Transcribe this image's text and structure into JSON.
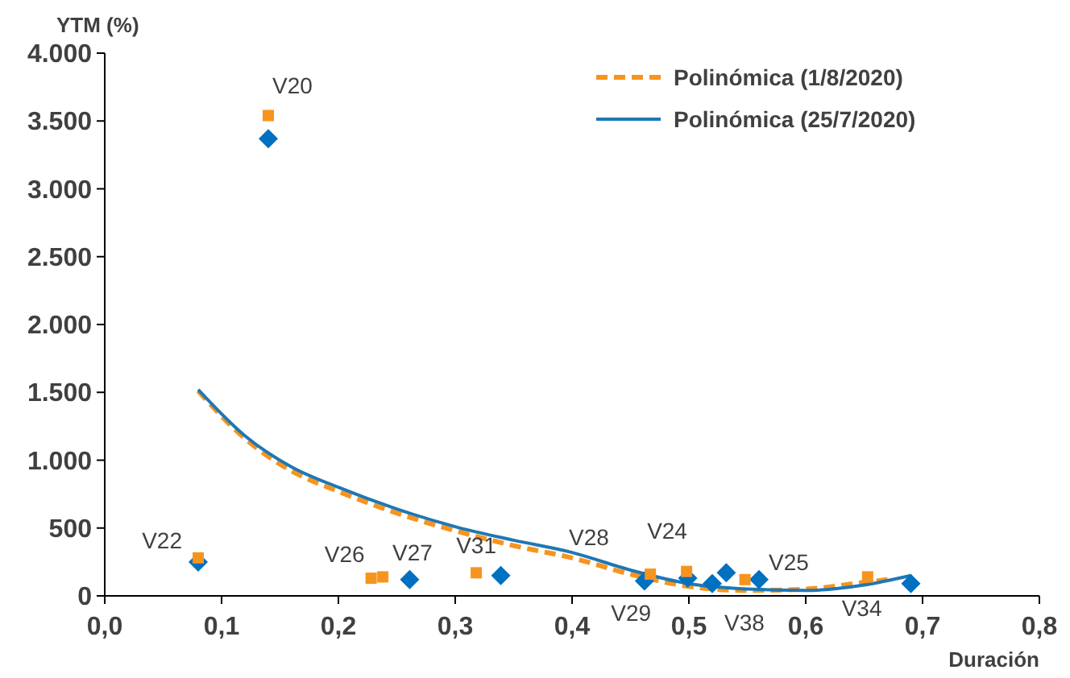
{
  "chart_data": {
    "type": "scatter",
    "xlabel": "Duración",
    "ylabel": "YTM (%)",
    "xlim": [
      0,
      0.8
    ],
    "xticks": [
      {
        "value": 0,
        "label": "0,0"
      },
      {
        "value": 0.1,
        "label": "0,1"
      },
      {
        "value": 0.2,
        "label": "0,2"
      },
      {
        "value": 0.3,
        "label": "0,3"
      },
      {
        "value": 0.4,
        "label": "0,4"
      },
      {
        "value": 0.5,
        "label": "0,5"
      },
      {
        "value": 0.6,
        "label": "0,6"
      },
      {
        "value": 0.7,
        "label": "0,7"
      },
      {
        "value": 0.8,
        "label": "0,8"
      }
    ],
    "ylim": [
      0,
      4000
    ],
    "yticks": [
      0,
      500,
      {
        "value": 1000,
        "label": "1.000"
      },
      {
        "value": 1500,
        "label": "1.500"
      },
      {
        "value": 2000,
        "label": "2.000"
      },
      {
        "value": 2500,
        "label": "2.500"
      },
      {
        "value": 3000,
        "label": "3.000"
      },
      {
        "value": 3500,
        "label": "3.500"
      },
      {
        "value": 4000,
        "label": "4.000"
      }
    ],
    "grid": false,
    "legend": "top right",
    "series": [
      {
        "color": "#f7941d",
        "marker": "square",
        "x": [
          0.08,
          0.14,
          0.228,
          0.238,
          0.318,
          0.467,
          0.498,
          0.548,
          0.653
        ],
        "values": [
          280,
          3540,
          130,
          140,
          170,
          160,
          180,
          120,
          140
        ]
      },
      {
        "color": "#0070c0",
        "marker": "diamond",
        "x": [
          0.08,
          0.14,
          0.261,
          0.339,
          0.462,
          0.499,
          0.52,
          0.532,
          0.56,
          0.69
        ],
        "values": [
          250,
          3370,
          120,
          150,
          110,
          130,
          90,
          170,
          120,
          90
        ]
      },
      {
        "type": "line",
        "name": "Polinómica (1/8/2020)",
        "color": "#f7941d",
        "line_style": "dashed",
        "x": [
          0.08,
          0.12,
          0.16,
          0.2,
          0.25,
          0.3,
          0.35,
          0.4,
          0.45,
          0.5,
          0.55,
          0.6,
          0.65,
          0.67
        ],
        "values": [
          1510,
          1160,
          920,
          770,
          610,
          480,
          370,
          280,
          160,
          70,
          40,
          50,
          100,
          120
        ]
      },
      {
        "type": "line",
        "name": "Polinómica (25/7/2020)",
        "color": "#1f77b4",
        "line_style": "solid",
        "x": [
          0.08,
          0.12,
          0.16,
          0.2,
          0.25,
          0.3,
          0.35,
          0.4,
          0.45,
          0.5,
          0.55,
          0.6,
          0.65,
          0.69
        ],
        "values": [
          1520,
          1180,
          950,
          800,
          640,
          510,
          410,
          320,
          190,
          90,
          50,
          40,
          80,
          150
        ]
      }
    ],
    "annotations": [
      {
        "text": "V20",
        "x": 0.14,
        "y": 3540
      },
      {
        "text": "V22",
        "x": 0.08,
        "y": 280
      },
      {
        "text": "V26",
        "x": 0.228,
        "y": 130
      },
      {
        "text": "V27",
        "x": 0.238,
        "y": 140
      },
      {
        "text": "V31",
        "x": 0.318,
        "y": 170
      },
      {
        "text": "V28",
        "x": 0.462,
        "y": 110
      },
      {
        "text": "V24",
        "x": 0.467,
        "y": 160
      },
      {
        "text": "V29",
        "x": 0.467,
        "y": 160
      },
      {
        "text": "V38",
        "x": 0.52,
        "y": 90
      },
      {
        "text": "V25",
        "x": 0.56,
        "y": 120
      },
      {
        "text": "V34",
        "x": 0.69,
        "y": 90
      }
    ]
  }
}
